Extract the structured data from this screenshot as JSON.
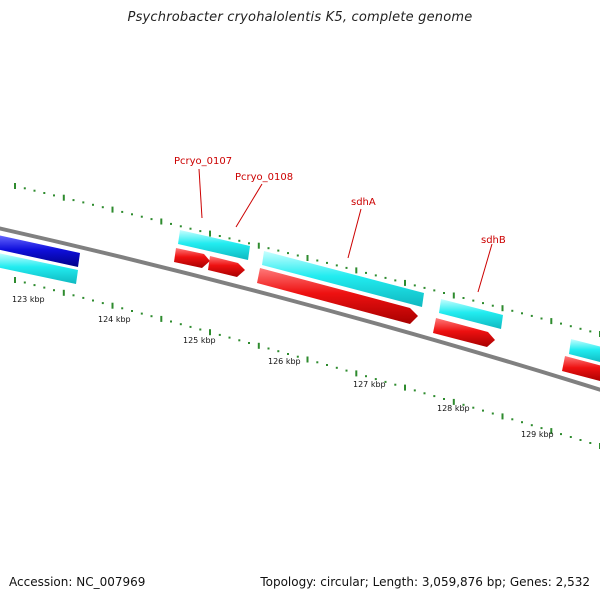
{
  "title": "Psychrobacter cryohalolentis K5, complete genome",
  "footer": {
    "accession_label": "Accession:",
    "accession": "NC_007969",
    "topology_label": "Topology:",
    "topology": "circular",
    "length_label": "Length:",
    "length": "3,059,876 bp",
    "genes_label": "Genes:",
    "genes": "2,532"
  },
  "colors": {
    "backbone": "#808080",
    "tick": "#2e8b2e",
    "gene_forward": "#22ecf0",
    "gene_reverse": "#ee1111",
    "gene_other": "#1010dd",
    "gene_label": "#cc0000",
    "scale_label": "#111111"
  },
  "scale": {
    "unit": "kbp",
    "labels": [
      "123 kbp",
      "124 kbp",
      "125 kbp",
      "126 kbp",
      "127 kbp",
      "128 kbp",
      "129 kbp"
    ]
  },
  "gene_labels": [
    "Pcryo_0107",
    "Pcryo_0108",
    "sdhA",
    "sdhB"
  ],
  "genes": [
    {
      "name": "",
      "strand": "forward",
      "track": "other"
    },
    {
      "name": "",
      "strand": "forward",
      "track": "forward"
    },
    {
      "name": "Pcryo_0107",
      "strand": "forward",
      "track": "forward"
    },
    {
      "name": "Pcryo_0107",
      "strand": "reverse",
      "track": "reverse"
    },
    {
      "name": "Pcryo_0108",
      "strand": "reverse",
      "track": "reverse"
    },
    {
      "name": "sdhA",
      "strand": "forward",
      "track": "forward"
    },
    {
      "name": "sdhA",
      "strand": "reverse",
      "track": "reverse"
    },
    {
      "name": "sdhB",
      "strand": "forward",
      "track": "forward"
    },
    {
      "name": "sdhB",
      "strand": "reverse",
      "track": "reverse"
    },
    {
      "name": "",
      "strand": "forward",
      "track": "forward"
    },
    {
      "name": "",
      "strand": "reverse",
      "track": "reverse"
    }
  ]
}
